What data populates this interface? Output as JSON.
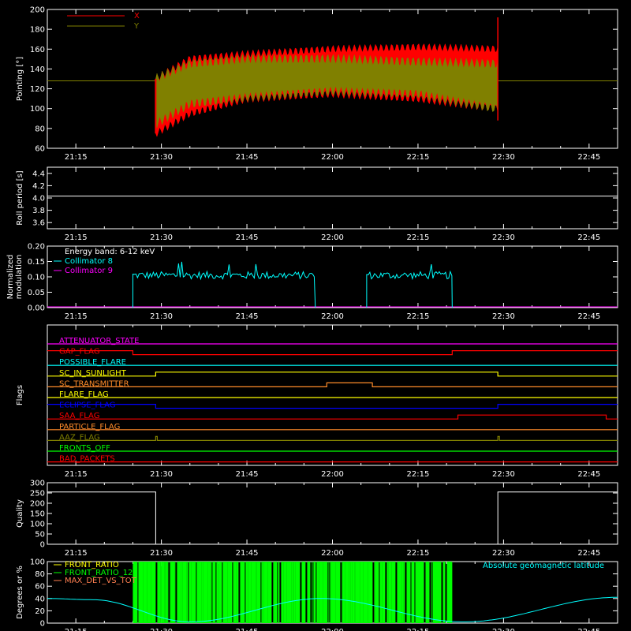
{
  "colors": {
    "background": "#000000",
    "axis": "#ffffff",
    "x": "#ff0000",
    "y": "#808000",
    "white": "#ffffff",
    "cyan": "#00ffff",
    "magenta": "#ff00ff",
    "green": "#00ff00",
    "orange": "#ff8c2a",
    "yellow": "#ffff00",
    "blue": "#0000ff",
    "red": "#ff0000",
    "olive": "#808000",
    "coral": "#ff7f50"
  },
  "time_ticks": [
    "21:15",
    "21:30",
    "21:45",
    "22:00",
    "22:15",
    "22:30",
    "22:45"
  ],
  "chart_data": [
    {
      "type": "area",
      "ylabel": "Pointing [°]",
      "ylim": [
        60,
        200
      ],
      "y_ticks": [
        "60",
        "80",
        "100",
        "120",
        "140",
        "160",
        "180",
        "200"
      ],
      "legend": [
        {
          "name": "X",
          "color": "#ff0000"
        },
        {
          "name": "Y",
          "color": "#808000"
        }
      ],
      "legend_placement": "top-left",
      "baseline": 128,
      "series": [
        {
          "name": "X",
          "color": "#ff0000",
          "x": [
            "21:29",
            "21:35",
            "21:45",
            "22:00",
            "22:15",
            "22:29"
          ],
          "upper": [
            130,
            150,
            155,
            160,
            162,
            160
          ],
          "lower": [
            75,
            95,
            110,
            115,
            110,
            100
          ]
        },
        {
          "name": "Y",
          "color": "#808000",
          "x": [
            "21:29",
            "21:35",
            "21:45",
            "22:00",
            "22:15",
            "22:29"
          ],
          "upper": [
            130,
            145,
            150,
            150,
            147,
            145
          ],
          "lower": [
            85,
            105,
            112,
            118,
            115,
            100
          ]
        }
      ]
    },
    {
      "type": "line",
      "ylabel": "Roll period [s]",
      "ylim": [
        3.5,
        4.5
      ],
      "y_ticks": [
        "3.6",
        "3.8",
        "4.0",
        "4.2",
        "4.4"
      ],
      "series": [
        {
          "name": "",
          "x": [
            "21:10",
            "22:50"
          ],
          "y": [
            4.03,
            4.03
          ]
        }
      ]
    },
    {
      "type": "line",
      "ylabel_lines": [
        "Normalized",
        "modulation"
      ],
      "ylim": [
        0,
        0.2
      ],
      "y_ticks": [
        "0.00",
        "0.05",
        "0.10",
        "0.15",
        "0.20"
      ],
      "annotation": "Energy band: 6-12 keV",
      "legend": [
        {
          "name": "Collimator 8",
          "color": "#00ffff"
        },
        {
          "name": "Collimator 9",
          "color": "#ff00ff"
        }
      ],
      "series": [
        {
          "name": "Collimator 8",
          "color": "#00ffff",
          "segments": [
            {
              "x": [
                "21:25",
                "21:57"
              ],
              "level": 0.105,
              "noise": 0.012
            },
            {
              "x": [
                "22:06",
                "22:21"
              ],
              "level": 0.105,
              "noise": 0.012
            }
          ]
        },
        {
          "name": "Collimator 9",
          "color": "#ff00ff",
          "level": 0
        }
      ]
    },
    {
      "type": "line",
      "ylabel": "Flags",
      "flags": [
        {
          "name": "ATTENUATOR_STATE",
          "color": "#ff00ff",
          "steps": [
            {
              "x": "21:10",
              "v": 0
            }
          ]
        },
        {
          "name": "GAP_FLAG",
          "color": "#ff0000",
          "steps": [
            {
              "x": "21:10",
              "v": 1
            },
            {
              "x": "21:25",
              "v": 0
            },
            {
              "x": "22:21",
              "v": 1
            }
          ]
        },
        {
          "name": "POSSIBLE_FLARE",
          "color": "#00ffff",
          "steps": [
            {
              "x": "21:10",
              "v": 0
            }
          ]
        },
        {
          "name": "SC_IN_SUNLIGHT",
          "color": "#ffff00",
          "steps": [
            {
              "x": "21:10",
              "v": 0
            },
            {
              "x": "21:29",
              "v": 1
            },
            {
              "x": "22:29",
              "v": 0
            }
          ]
        },
        {
          "name": "SC_TRANSMITTER",
          "color": "#ff8c2a",
          "steps": [
            {
              "x": "21:10",
              "v": 0
            },
            {
              "x": "21:59",
              "v": 1
            },
            {
              "x": "22:07",
              "v": 0
            }
          ]
        },
        {
          "name": "FLARE_FLAG",
          "color": "#ffff00",
          "steps": [
            {
              "x": "21:10",
              "v": 0
            }
          ]
        },
        {
          "name": "ECLIPSE_FLAG",
          "color": "#0000ff",
          "steps": [
            {
              "x": "21:10",
              "v": 1
            },
            {
              "x": "21:29",
              "v": 0
            },
            {
              "x": "22:29",
              "v": 1
            }
          ]
        },
        {
          "name": "SAA_FLAG",
          "color": "#ff0000",
          "steps": [
            {
              "x": "21:10",
              "v": 0
            },
            {
              "x": "22:22",
              "v": 1
            },
            {
              "x": "22:48",
              "v": 0
            }
          ]
        },
        {
          "name": "PARTICLE_FLAG",
          "color": "#ff8c2a",
          "steps": [
            {
              "x": "21:10",
              "v": 0
            }
          ]
        },
        {
          "name": "AAZ_FLAG",
          "color": "#808000",
          "spikes": [
            "21:29",
            "22:29"
          ]
        },
        {
          "name": "FRONTS_OFF",
          "color": "#00ff00",
          "steps": [
            {
              "x": "21:10",
              "v": 0
            }
          ]
        },
        {
          "name": "BAD_PACKETS",
          "color": "#ff0000",
          "steps": [
            {
              "x": "21:10",
              "v": 0
            }
          ]
        }
      ]
    },
    {
      "type": "line",
      "ylabel": "Quality",
      "ylim": [
        0,
        300
      ],
      "y_ticks": [
        "0",
        "50",
        "100",
        "150",
        "200",
        "250",
        "300"
      ],
      "series": [
        {
          "name": "",
          "x": [
            "21:10",
            "21:29",
            "21:29",
            "22:29",
            "22:29",
            "22:50"
          ],
          "y": [
            255,
            255,
            0,
            0,
            255,
            255
          ]
        }
      ]
    },
    {
      "type": "bar",
      "ylabel": "Degrees or %",
      "ylim": [
        0,
        100
      ],
      "y_ticks": [
        "0",
        "20",
        "40",
        "60",
        "80",
        "100"
      ],
      "legend": [
        {
          "name": "FRONT_RATIO",
          "color": "#ffff00"
        },
        {
          "name": "FRONT_RATIO_1225",
          "color": "#00ff00"
        },
        {
          "name": "MAX_DET_VS_TOT",
          "color": "#ff7f50"
        }
      ],
      "annotation": "Absolute geomagnetic latitude",
      "bars": {
        "series": "FRONT_RATIO_1225",
        "x": [
          "21:25",
          "22:21"
        ],
        "value": 100
      },
      "latitude": {
        "x": [
          "21:10",
          "21:18",
          "21:35",
          "21:58",
          "22:23",
          "22:50"
        ],
        "y": [
          40,
          38,
          2,
          40,
          2,
          42
        ]
      }
    }
  ]
}
